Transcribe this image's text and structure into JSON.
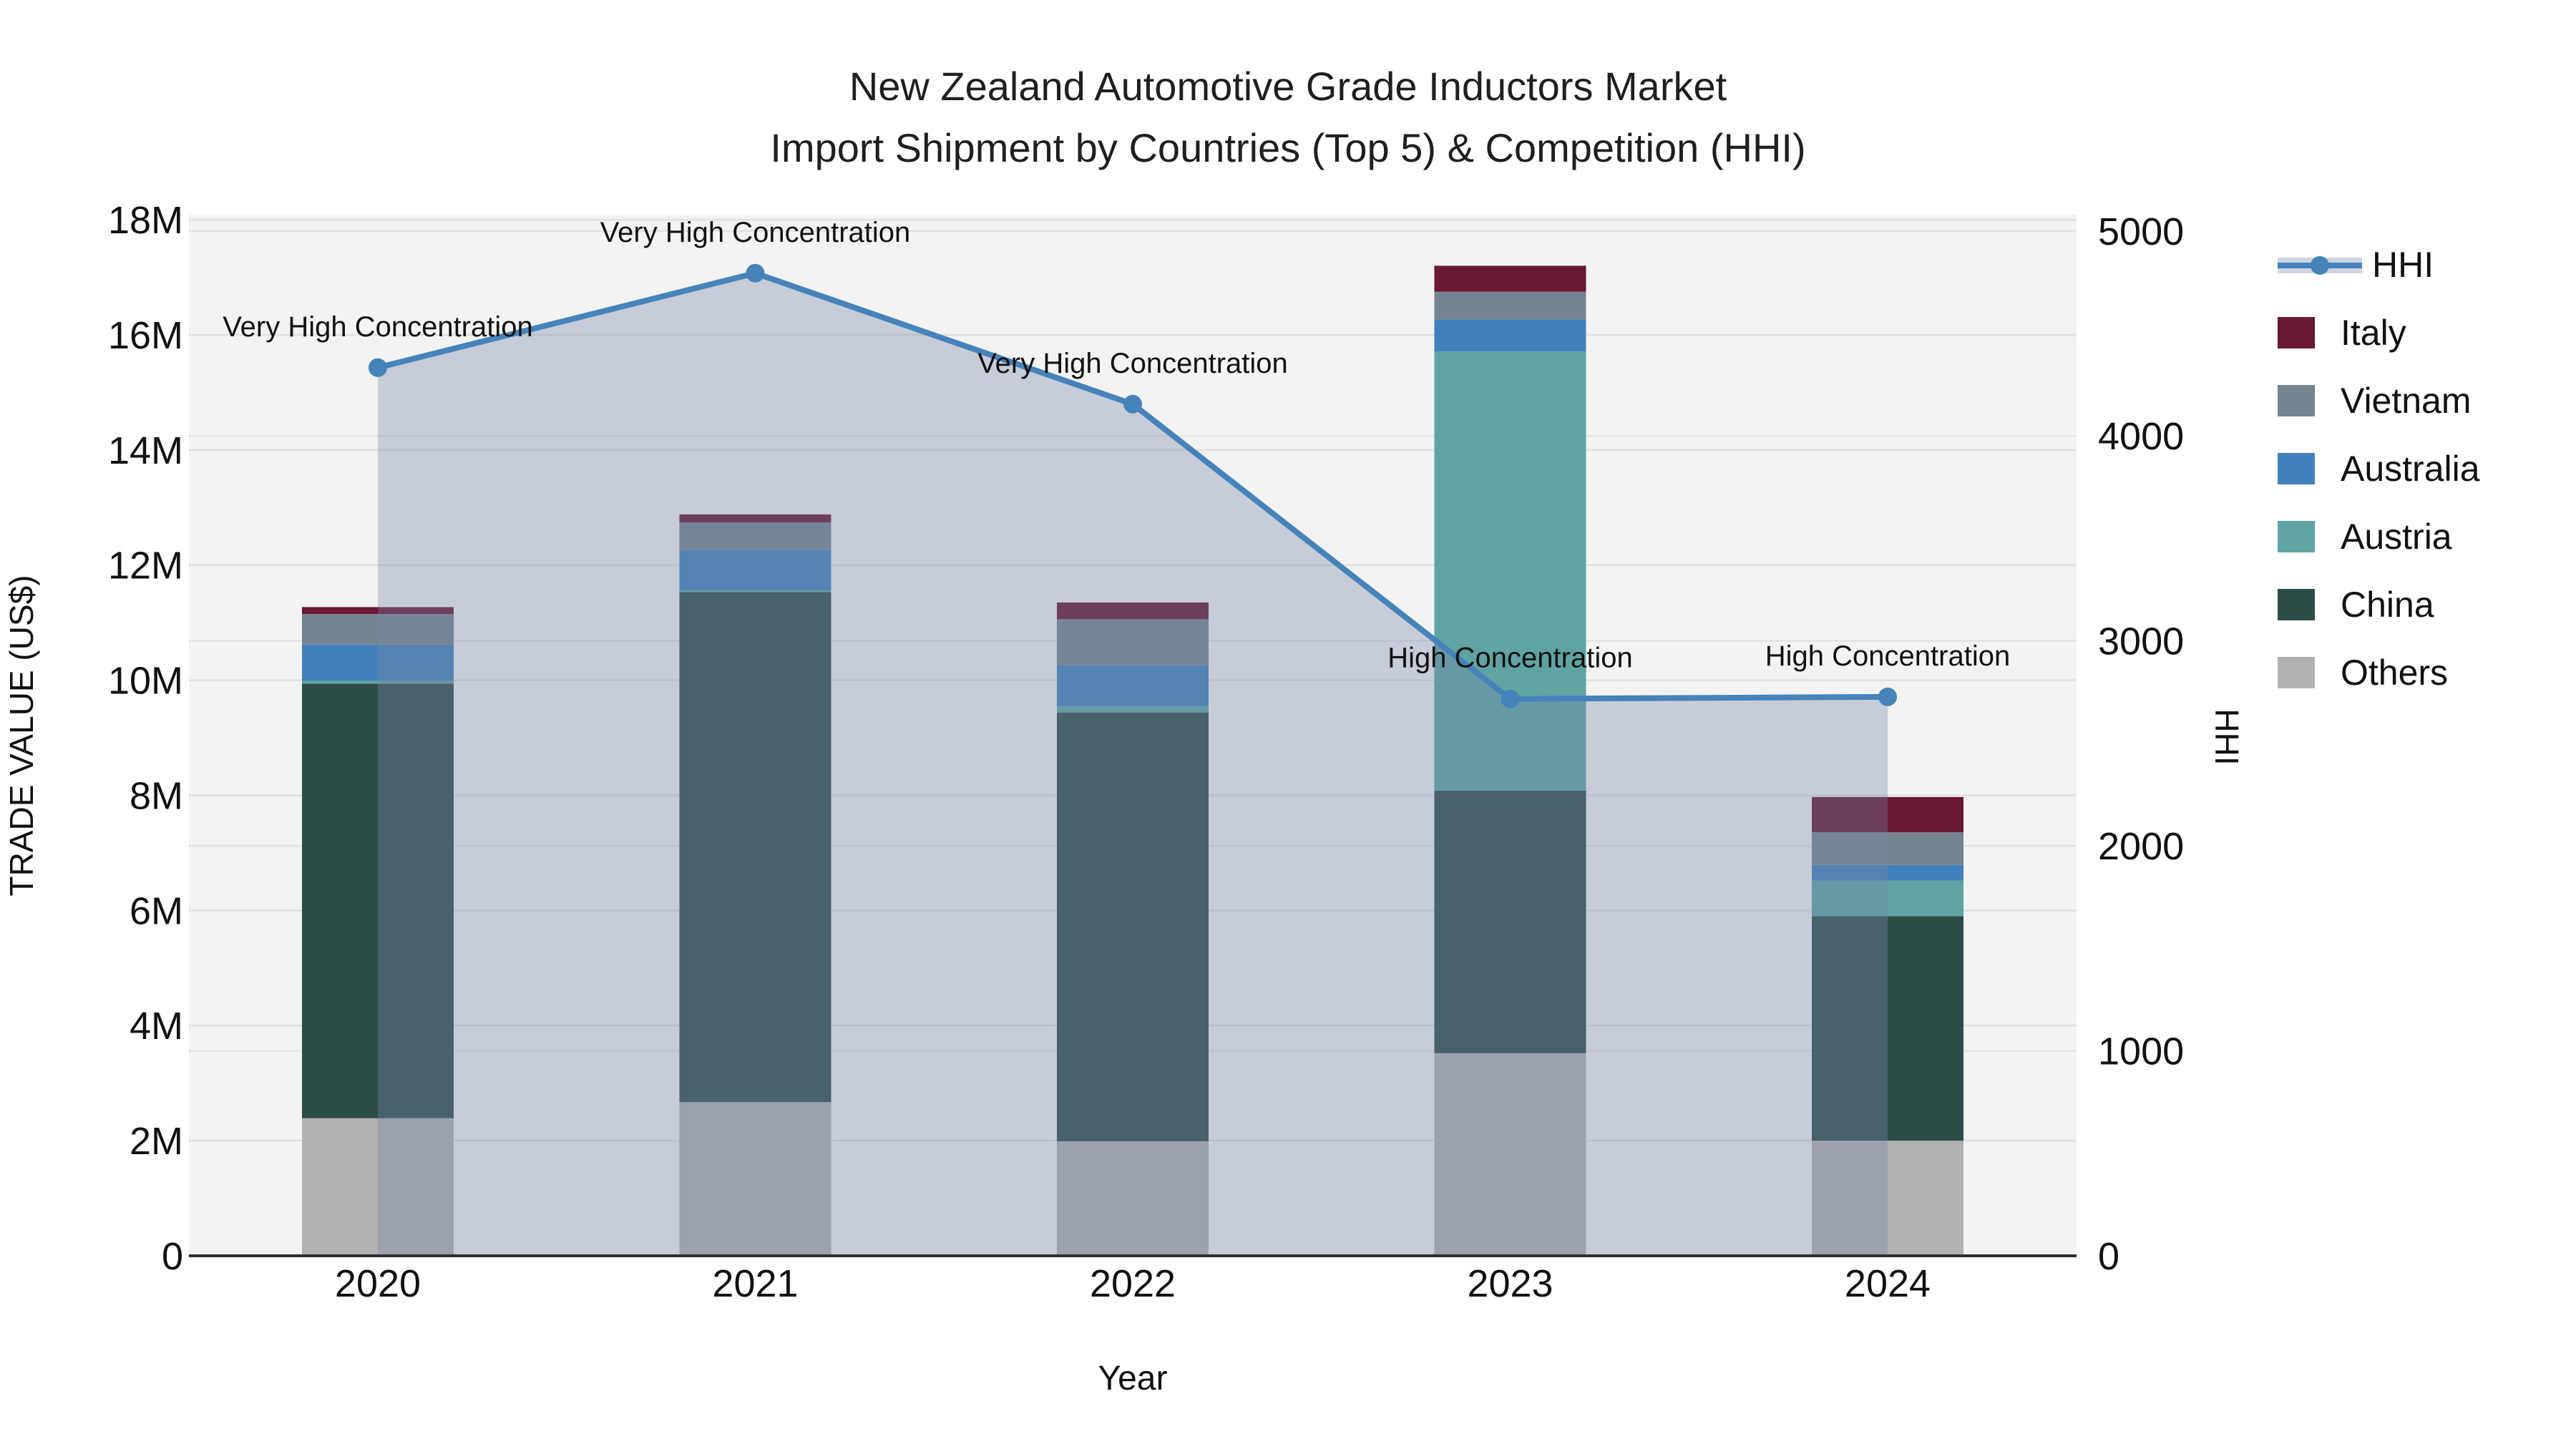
{
  "chart_data": {
    "type": "bar+line",
    "title": "New Zealand Automotive Grade Inductors Market",
    "subtitle": "Import Shipment by Countries (Top 5) & Competition (HHI)",
    "xlabel": "Year",
    "ylabel_left": "TRADE VALUE (US$)",
    "ylabel_right": "HHI",
    "categories": [
      "2020",
      "2021",
      "2022",
      "2023",
      "2024"
    ],
    "value_unit": "million US$",
    "stack_order_bottom_to_top": [
      "Others",
      "China",
      "Austria",
      "Australia",
      "Vietnam",
      "Italy"
    ],
    "series": [
      {
        "name": "Italy",
        "color": "#691732",
        "values": [
          0.12,
          0.14,
          0.29,
          0.45,
          0.61
        ]
      },
      {
        "name": "Vietnam",
        "color": "#76848F",
        "values": [
          0.53,
          0.48,
          0.8,
          0.48,
          0.57
        ]
      },
      {
        "name": "Australia",
        "color": "#4181BB",
        "values": [
          0.63,
          0.7,
          0.71,
          0.56,
          0.27
        ]
      },
      {
        "name": "Austria",
        "color": "#5FA3A3",
        "values": [
          0.05,
          0.03,
          0.11,
          7.63,
          0.62
        ]
      },
      {
        "name": "China",
        "color": "#2E4C48",
        "values": [
          7.55,
          8.86,
          7.45,
          4.56,
          3.9
        ]
      },
      {
        "name": "Others",
        "color": "#B1B1B0",
        "values": [
          2.39,
          2.67,
          1.99,
          3.52,
          2.0
        ]
      }
    ],
    "bar_totals": [
      11.27,
      12.88,
      11.35,
      17.2,
      7.97
    ],
    "hhi_series": {
      "name": "HHI",
      "line_color": "#4583BA",
      "area_color": "rgba(120,137,168,0.36)",
      "values": [
        4333,
        4794,
        4155,
        2717,
        2727
      ]
    },
    "annotations": [
      {
        "category": "2020",
        "label": "Very High Concentration"
      },
      {
        "category": "2021",
        "label": "Very High Concentration"
      },
      {
        "category": "2022",
        "label": "Very High Concentration"
      },
      {
        "category": "2023",
        "label": "High Concentration"
      },
      {
        "category": "2024",
        "label": "High Concentration"
      }
    ],
    "left_axis": {
      "tick_labels": [
        "0",
        "2M",
        "4M",
        "6M",
        "8M",
        "10M",
        "12M",
        "14M",
        "16M",
        "18M"
      ],
      "tick_values": [
        0,
        2,
        4,
        6,
        8,
        10,
        12,
        14,
        16,
        18
      ],
      "max": 18
    },
    "right_axis": {
      "tick_labels": [
        "0",
        "1000",
        "2000",
        "3000",
        "4000",
        "5000"
      ],
      "tick_values": [
        0,
        1000,
        2000,
        3000,
        4000,
        5000
      ],
      "max": 5000
    },
    "legend_order": [
      "HHI",
      "Italy",
      "Vietnam",
      "Australia",
      "Austria",
      "China",
      "Others"
    ],
    "style": {
      "plot_bg": "#f3f3f3",
      "grid_color": "#e0e0e0",
      "spine_color": "#2f2f2f",
      "text_color": "#111111",
      "legend_on": true,
      "grid_on": true
    }
  }
}
